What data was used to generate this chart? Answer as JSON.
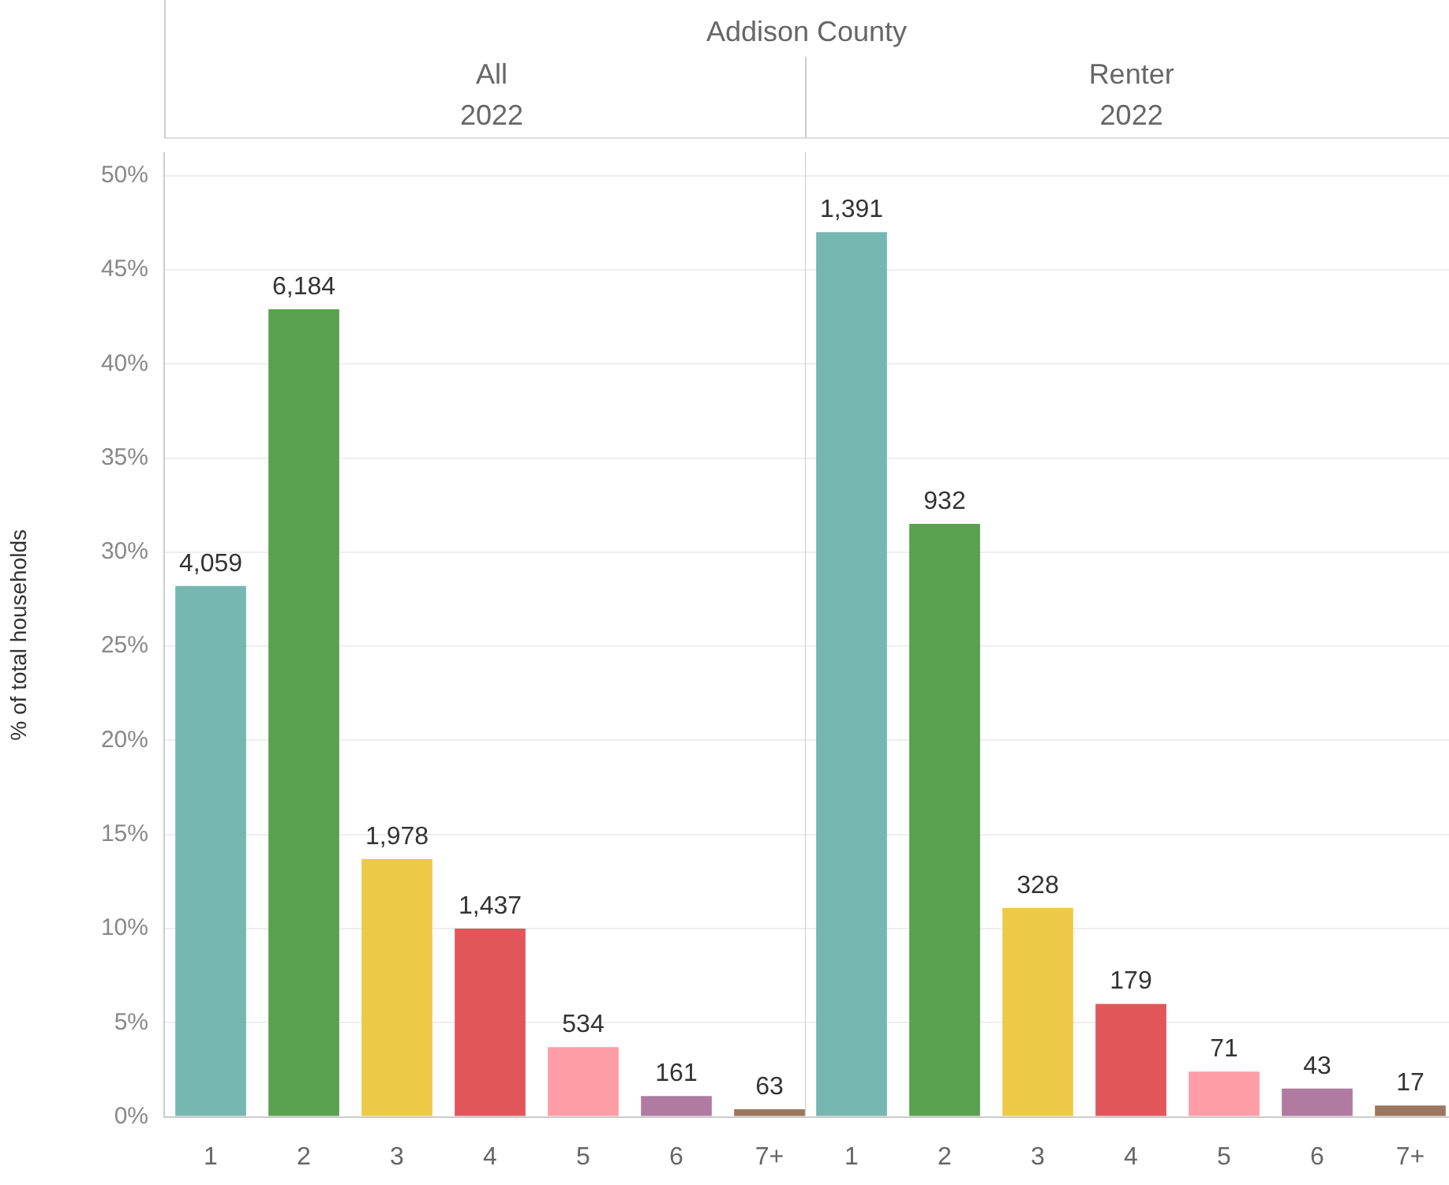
{
  "chart_data": [
    {
      "type": "bar",
      "title": "All",
      "subtitle": "2022",
      "ylabel": "% of total households",
      "categories": [
        "1",
        "2",
        "3",
        "4",
        "5",
        "6",
        "7+"
      ],
      "values": [
        28.2,
        42.9,
        13.7,
        10.0,
        3.7,
        1.1,
        0.4
      ],
      "colors": [
        "#76b7b2",
        "#59a14f",
        "#edc948",
        "#e15759",
        "#ff9da7",
        "#b07aa1",
        "#9c755f"
      ],
      "ylim": [
        0,
        51.2
      ],
      "yticks": [
        {
          "value": 0,
          "label": "0%"
        },
        {
          "value": 5,
          "label": "5%"
        },
        {
          "value": 10,
          "label": "10%"
        },
        {
          "value": 15,
          "label": "15%"
        },
        {
          "value": 20,
          "label": "20%"
        },
        {
          "value": 25,
          "label": "25%"
        },
        {
          "value": 30,
          "label": "30%"
        },
        {
          "value": 35,
          "label": "35%"
        },
        {
          "value": 40,
          "label": "40%"
        },
        {
          "value": 45,
          "label": "45%"
        },
        {
          "value": 50,
          "label": "50%"
        }
      ],
      "grid": "y",
      "annotations": [
        "Addison County",
        {
          "text": "4,059",
          "x": "1",
          "y": 28.2
        },
        {
          "text": "6,184",
          "x": "2",
          "y": 42.9
        },
        {
          "text": "1,978",
          "x": "3",
          "y": 13.7
        },
        {
          "text": "1,437",
          "x": "4",
          "y": 10.0
        },
        {
          "text": "534",
          "x": "5",
          "y": 3.7
        },
        {
          "text": "161",
          "x": "6",
          "y": 1.1
        },
        {
          "text": "63",
          "x": "7+",
          "y": 0.4
        }
      ]
    },
    {
      "type": "bar",
      "title": "Renter",
      "subtitle": "2022",
      "categories": [
        "1",
        "2",
        "3",
        "4",
        "5",
        "6",
        "7+"
      ],
      "values": [
        47.0,
        31.5,
        11.1,
        6.0,
        2.4,
        1.5,
        0.6
      ],
      "colors": [
        "#76b7b2",
        "#59a14f",
        "#edc948",
        "#e15759",
        "#ff9da7",
        "#b07aa1",
        "#9c755f"
      ],
      "ylim": [
        0,
        51.2
      ],
      "yticks": [
        {
          "value": 0,
          "label": null
        },
        {
          "value": 5,
          "label": null
        },
        {
          "value": 10,
          "label": null
        },
        {
          "value": 15,
          "label": null
        },
        {
          "value": 20,
          "label": null
        },
        {
          "value": 25,
          "label": null
        },
        {
          "value": 30,
          "label": null
        },
        {
          "value": 35,
          "label": null
        },
        {
          "value": 40,
          "label": null
        },
        {
          "value": 45,
          "label": null
        },
        {
          "value": 50,
          "label": null
        }
      ],
      "grid": "y",
      "tick_labels": "x",
      "annotations": [
        {
          "text": "1,391",
          "x": "1",
          "y": 47.0
        },
        {
          "text": "932",
          "x": "2",
          "y": 31.5
        },
        {
          "text": "328",
          "x": "3",
          "y": 11.1
        },
        {
          "text": "179",
          "x": "4",
          "y": 6.0
        },
        {
          "text": "71",
          "x": "5",
          "y": 2.4
        },
        {
          "text": "43",
          "x": "6",
          "y": 1.5
        },
        {
          "text": "17",
          "x": "7+",
          "y": 0.6
        }
      ]
    }
  ]
}
